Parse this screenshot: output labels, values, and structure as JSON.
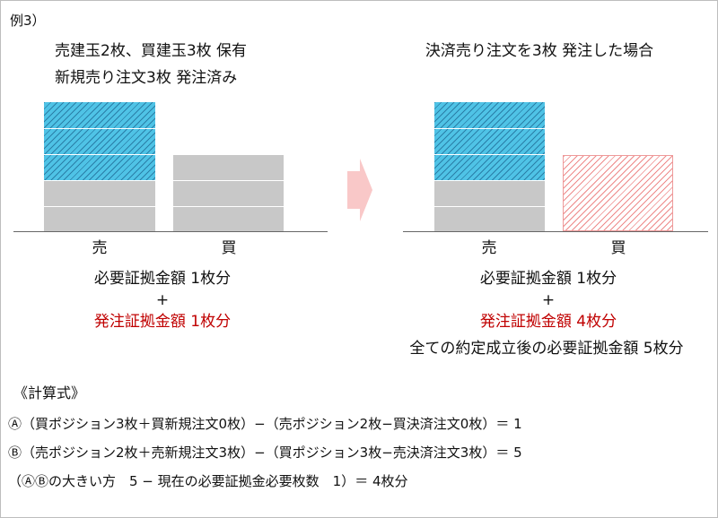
{
  "example_label": "例3）",
  "left": {
    "title_line1": "売建玉2枚、買建玉3枚 保有",
    "title_line2": "新規売り注文3枚 発注済み",
    "sell_label": "売",
    "buy_label": "買",
    "margin_required": "必要証拠金額 1枚分",
    "plus": "+",
    "order_margin": "発注証拠金額 1枚分"
  },
  "right": {
    "title": "決済売り注文を3枚 発注した場合",
    "sell_label": "売",
    "buy_label": "買",
    "margin_required": "必要証拠金額 1枚分",
    "plus": "+",
    "order_margin": "発注証拠金額 4枚分",
    "total_note": "全ての約定成立後の必要証拠金額 5枚分"
  },
  "formula": {
    "heading": "《計算式》",
    "line_a": "Ⓐ（買ポジション3枚＋買新規注文0枚）−（売ポジション2枚−買決済注文0枚）＝ 1",
    "line_b": "Ⓑ（売ポジション2枚＋売新規注文3枚）−（買ポジション3枚−売決済注文3枚）＝ 5",
    "line_c": "（ⒶⒷの大きい方　5 − 現在の必要証拠金必要枚数　1）＝ 4枚分"
  },
  "colors": {
    "new_order_hatch": "#4fc3e6",
    "position_gray": "#c8c8c8",
    "settlement_hatch": "#ee8a8a",
    "arrow": "#f9c8c8",
    "highlight_text": "#c00000"
  }
}
